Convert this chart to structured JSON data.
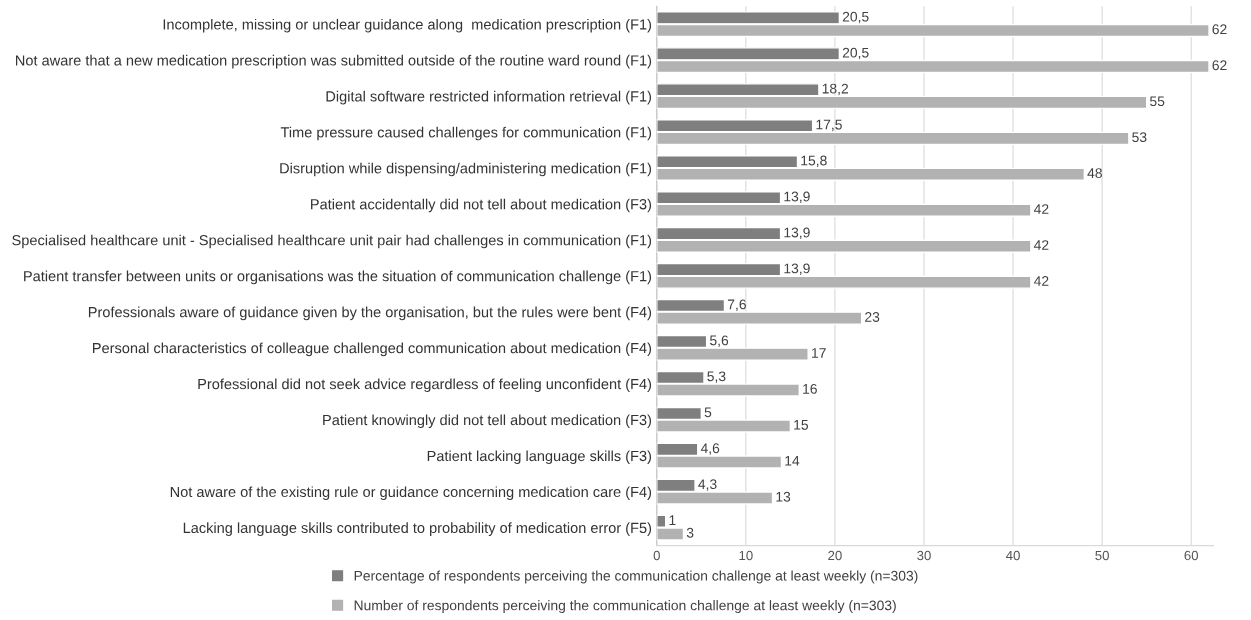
{
  "chart_data": {
    "type": "bar",
    "orientation": "horizontal",
    "categories": [
      "Incomplete, missing or unclear guidance along  medication prescription (F1)",
      "Not aware that a new medication prescription was submitted outside of the routine ward round (F1)",
      "Digital software restricted information retrieval (F1)",
      "Time pressure caused challenges for communication (F1)",
      "Disruption while dispensing/administering medication (F1)",
      "Patient accidentally did not tell about medication (F3)",
      "Specialised healthcare unit - Specialised healthcare unit pair had challenges in communication (F1)",
      "Patient transfer between units or organisations was the situation of communication challenge (F1)",
      "Professionals aware of guidance given by the organisation, but the rules were bent (F4)",
      "Personal characteristics of colleague challenged communication about medication (F4)",
      "Professional did not seek advice regardless of feeling unconfident (F4)",
      "Patient knowingly did not tell about medication (F3)",
      "Patient lacking language skills (F3)",
      "Not aware of the existing rule or guidance concerning medication care (F4)",
      "Lacking language skills contributed to probability of medication error (F5)"
    ],
    "series": [
      {
        "name": "Percentage of respondents perceiving the communication challenge at least weekly (n=303)",
        "color": "#7f7f7f",
        "values": [
          20.5,
          20.5,
          18.2,
          17.5,
          15.8,
          13.9,
          13.9,
          13.9,
          7.6,
          5.6,
          5.3,
          5,
          4.6,
          4.3,
          1
        ],
        "value_labels": [
          "20,5",
          "20,5",
          "18,2",
          "17,5",
          "15,8",
          "13,9",
          "13,9",
          "13,9",
          "7,6",
          "5,6",
          "5,3",
          "5",
          "4,6",
          "4,3",
          "1"
        ]
      },
      {
        "name": "Number of respondents perceiving the communication challenge at least weekly (n=303)",
        "color": "#b2b2b2",
        "values": [
          62,
          62,
          55,
          53,
          48,
          42,
          42,
          42,
          23,
          17,
          16,
          15,
          14,
          13,
          3
        ],
        "value_labels": [
          "62",
          "62",
          "55",
          "53",
          "48",
          "42",
          "42",
          "42",
          "23",
          "17",
          "16",
          "15",
          "14",
          "13",
          "3"
        ]
      }
    ],
    "xlim": [
      0,
      62.5
    ],
    "xticks": [
      0,
      10,
      20,
      30,
      40,
      50,
      60
    ],
    "grid": "x",
    "legend": "bottom"
  }
}
